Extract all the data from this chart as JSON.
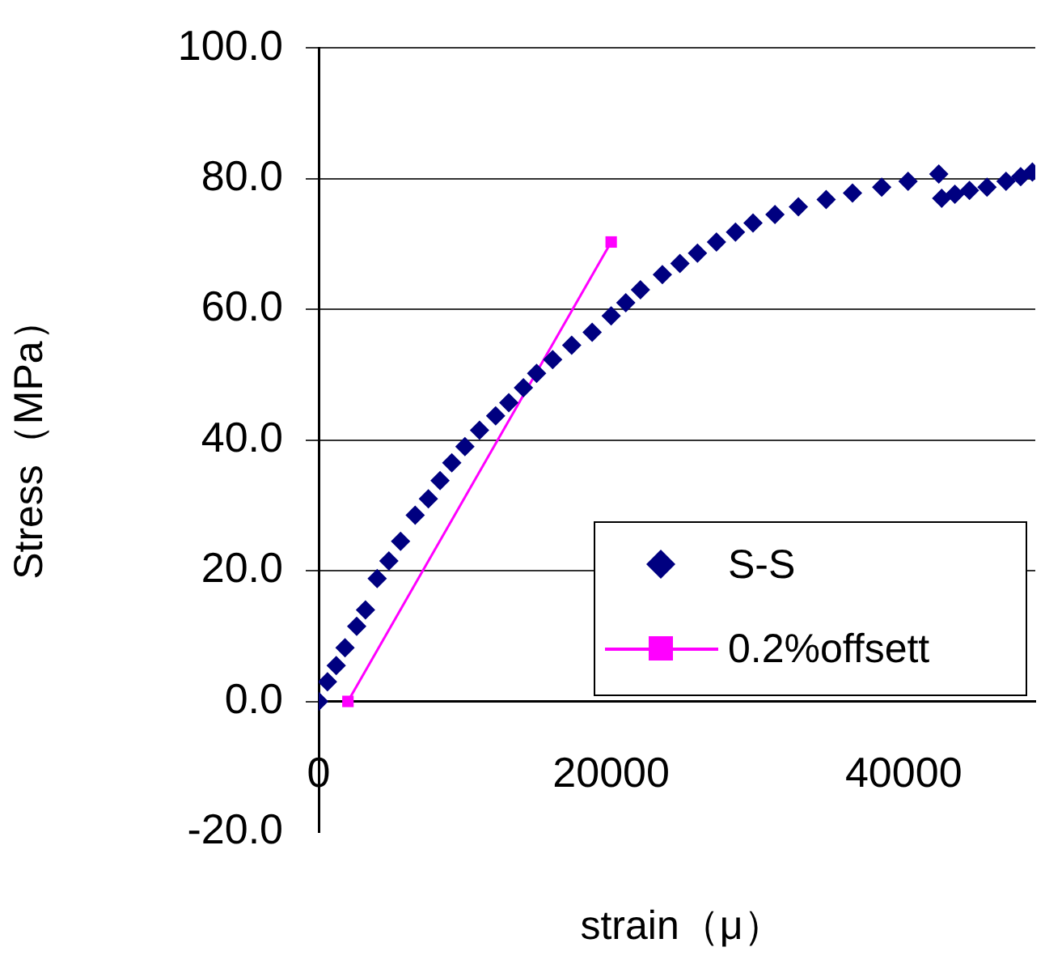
{
  "chart_data": {
    "type": "scatter",
    "xlabel": "strain（μ）",
    "ylabel": "Stress（MPa）",
    "xlim": [
      0,
      49000
    ],
    "xticks": [
      0,
      20000,
      40000
    ],
    "ylim": [
      -20,
      100
    ],
    "yticks": [
      {
        "value": -20,
        "label": "-20.0"
      },
      {
        "value": 0,
        "label": "0.0"
      },
      {
        "value": 20,
        "label": "20.0"
      },
      {
        "value": 40,
        "label": "40.0"
      },
      {
        "value": 60,
        "label": "60.0"
      },
      {
        "value": 80,
        "label": "80.0"
      },
      {
        "value": 100,
        "label": "100.0"
      }
    ],
    "grid": "y",
    "legend": "bottom right",
    "series": [
      {
        "name": "S-S",
        "type": "scatter",
        "marker": "diamond",
        "color": "#000080",
        "x": [
          0,
          600,
          1200,
          1800,
          2600,
          3200,
          4000,
          4800,
          5600,
          6600,
          7500,
          8300,
          9100,
          10000,
          11000,
          12100,
          13000,
          14000,
          14900,
          16000,
          17300,
          18700,
          20000,
          21000,
          22000,
          23500,
          24700,
          25900,
          27200,
          28500,
          29700,
          31200,
          32800,
          34700,
          36500,
          38500,
          40300,
          42400,
          42600,
          43500,
          44500,
          45700,
          47000,
          48000,
          48800
        ],
        "values": [
          0,
          3,
          5.5,
          8.2,
          11.5,
          14,
          18.8,
          21.5,
          24.5,
          28.5,
          31,
          33.8,
          36.5,
          39,
          41.5,
          43.7,
          45.7,
          48,
          50.2,
          52.3,
          54.5,
          56.5,
          59,
          61,
          63,
          65.3,
          67,
          68.6,
          70.3,
          71.8,
          73.2,
          74.5,
          75.7,
          76.8,
          77.8,
          78.7,
          79.6,
          80.7,
          77,
          77.6,
          78.2,
          78.7,
          79.6,
          80.3,
          81
        ]
      },
      {
        "name": "0.2%offsett",
        "type": "line",
        "marker": "square",
        "line_style": "solid",
        "color": "#ff00ff",
        "x": [
          2000,
          20000
        ],
        "values": [
          0,
          70.3
        ]
      }
    ]
  }
}
